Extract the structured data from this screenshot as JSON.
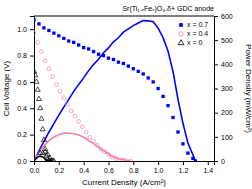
{
  "chart_data": {
    "type": "line",
    "title": "Sr(Ti₁₋ₓFeₓ)O₃₋δ+ GDC anode",
    "x_label": "Current Density (A/cm²)",
    "y_label": "Cell Voltage (V)",
    "y2_label": "Power Density (mW/cm²)",
    "xlim": [
      0,
      1.45
    ],
    "ylim": [
      0,
      1.1
    ],
    "y2lim": [
      0,
      600
    ],
    "xticks": [
      {
        "value": 0.0,
        "label": "0.0"
      },
      0.2,
      0.4,
      0.6,
      0.8,
      {
        "value": 1.0,
        "label": "1.0"
      },
      1.2,
      1.4
    ],
    "yticks": [
      {
        "value": 0.0,
        "label": "0.0"
      },
      0.2,
      0.4,
      0.6,
      0.8,
      {
        "value": 1.0,
        "label": "1.0"
      }
    ],
    "y2ticks": [
      0,
      100,
      200,
      300,
      400,
      500,
      600
    ],
    "grid": false,
    "legend": "upper right",
    "series": [
      {
        "type": "line",
        "axis": "y2",
        "color": "blue",
        "line_style": "solid",
        "x": [
          0.0,
          0.04,
          0.08,
          0.12,
          0.16,
          0.2,
          0.24,
          0.28,
          0.32,
          0.36,
          0.4,
          0.44,
          0.48,
          0.52,
          0.56,
          0.6,
          0.64,
          0.68,
          0.72,
          0.76,
          0.8,
          0.84,
          0.88,
          0.92,
          0.96,
          1.0,
          1.04,
          1.08,
          1.12,
          1.16,
          1.2,
          1.24,
          1.28,
          1.3
        ],
        "values": [
          0,
          42,
          81,
          119,
          155,
          190,
          223,
          255,
          288,
          317,
          344,
          374,
          399,
          421,
          448,
          468,
          493,
          510,
          533,
          547,
          560,
          571,
          581,
          580,
          576,
          550,
          510,
          454,
          370,
          255,
          156,
          74,
          26,
          0
        ]
      },
      {
        "type": "line",
        "axis": "y2",
        "color": "#ee82b0",
        "line_style": "solid",
        "x": [
          0.0,
          0.03,
          0.06,
          0.09,
          0.12,
          0.15,
          0.18,
          0.21,
          0.24,
          0.27,
          0.3,
          0.33,
          0.36,
          0.39,
          0.42,
          0.45,
          0.48,
          0.51,
          0.54,
          0.57,
          0.6,
          0.63,
          0.66,
          0.69,
          0.72,
          0.75,
          0.78
        ],
        "values": [
          0,
          27,
          50,
          68,
          84,
          96,
          104,
          111,
          115,
          116,
          114,
          112,
          108,
          101,
          92,
          81,
          72,
          61,
          49,
          40,
          30,
          19,
          13,
          7,
          7,
          0,
          0
        ]
      },
      {
        "type": "line",
        "axis": "y2",
        "color": "black",
        "line_style": "solid",
        "x": [
          0.0,
          0.01,
          0.02,
          0.03,
          0.04,
          0.05,
          0.06,
          0.07,
          0.08,
          0.09,
          0.1,
          0.11,
          0.12,
          0.13,
          0.14
        ],
        "values": [
          0,
          7,
          12,
          16,
          19,
          20,
          19,
          17,
          13,
          8,
          4,
          1,
          0,
          0,
          0
        ]
      },
      {
        "name": "x = 0.7",
        "type": "scatter",
        "color": "blue",
        "marker": "square",
        "x": [
          0.0,
          0.04,
          0.08,
          0.12,
          0.16,
          0.2,
          0.24,
          0.28,
          0.32,
          0.36,
          0.4,
          0.44,
          0.48,
          0.52,
          0.56,
          0.6,
          0.64,
          0.68,
          0.72,
          0.76,
          0.8,
          0.84,
          0.88,
          0.92,
          0.96,
          1.0,
          1.04,
          1.08,
          1.12,
          1.16,
          1.2,
          1.24,
          1.28,
          1.3
        ],
        "values": [
          1.07,
          1.04,
          1.01,
          0.99,
          0.97,
          0.95,
          0.93,
          0.91,
          0.9,
          0.88,
          0.86,
          0.85,
          0.83,
          0.81,
          0.8,
          0.78,
          0.77,
          0.75,
          0.74,
          0.72,
          0.7,
          0.68,
          0.66,
          0.63,
          0.6,
          0.55,
          0.49,
          0.42,
          0.33,
          0.22,
          0.13,
          0.06,
          0.02,
          0.0
        ]
      },
      {
        "name": "x = 0.4",
        "type": "scatter",
        "color": "#ee82b0",
        "marker": "circle-open",
        "x": [
          0.0,
          0.03,
          0.06,
          0.09,
          0.12,
          0.15,
          0.18,
          0.21,
          0.24,
          0.27,
          0.3,
          0.33,
          0.36,
          0.39,
          0.42,
          0.45,
          0.48,
          0.51,
          0.54,
          0.57,
          0.6,
          0.63,
          0.66,
          0.69,
          0.72,
          0.75,
          0.78
        ],
        "values": [
          0.97,
          0.9,
          0.83,
          0.76,
          0.7,
          0.64,
          0.58,
          0.53,
          0.48,
          0.43,
          0.38,
          0.34,
          0.3,
          0.26,
          0.22,
          0.18,
          0.15,
          0.12,
          0.09,
          0.07,
          0.05,
          0.03,
          0.02,
          0.01,
          0.01,
          0.0,
          0.0
        ]
      },
      {
        "name": "x = 0",
        "type": "scatter",
        "color": "black",
        "marker": "triangle-open",
        "x": [
          0.0,
          0.01,
          0.02,
          0.03,
          0.04,
          0.05,
          0.06,
          0.07,
          0.08,
          0.09,
          0.1,
          0.11,
          0.12,
          0.13,
          0.14,
          0.15,
          0.16,
          0.05,
          0.07,
          0.09,
          0.11,
          0.13
        ],
        "values": [
          0.68,
          0.65,
          0.6,
          0.54,
          0.47,
          0.4,
          0.32,
          0.24,
          0.16,
          0.09,
          0.04,
          0.01,
          0.0,
          0.0,
          0.0,
          0.0,
          0.0,
          0.06,
          0.06,
          0.07,
          0.05,
          0.02
        ]
      }
    ]
  }
}
